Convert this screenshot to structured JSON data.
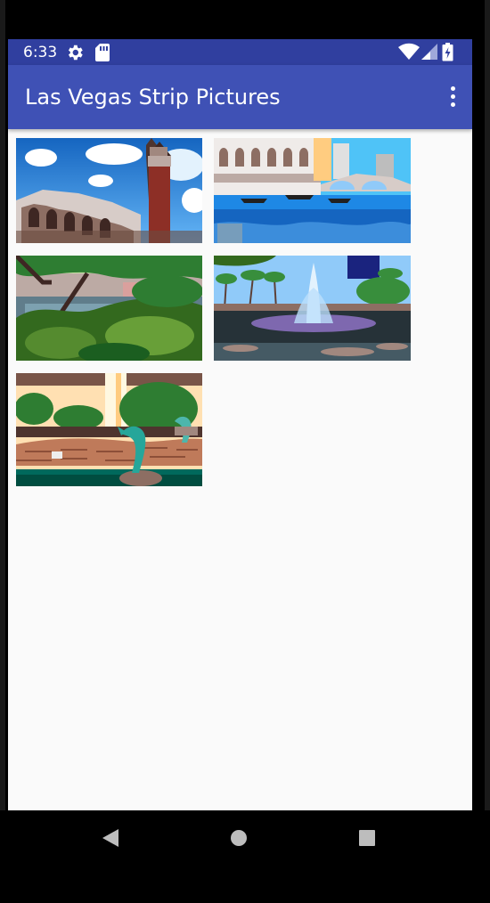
{
  "status": {
    "time": "6:33",
    "icons": [
      "gear-icon",
      "sd-card-icon",
      "wifi-icon",
      "cell-signal-icon",
      "battery-icon"
    ]
  },
  "appbar": {
    "title": "Las Vegas Strip Pictures",
    "menu_icon": "more-vert-icon",
    "color": "#3f51b5",
    "status_color": "#303f9f"
  },
  "gallery": {
    "photos": [
      {
        "subject": "Campanile tower and Rialto bridge"
      },
      {
        "subject": "Venetian canal with gondolas"
      },
      {
        "subject": "Lagoon garden with trees"
      },
      {
        "subject": "Fountain in a pool"
      },
      {
        "subject": "Dolphin statue fountain"
      }
    ]
  },
  "nav": {
    "icons": [
      "back-icon",
      "home-icon",
      "recents-icon"
    ]
  }
}
